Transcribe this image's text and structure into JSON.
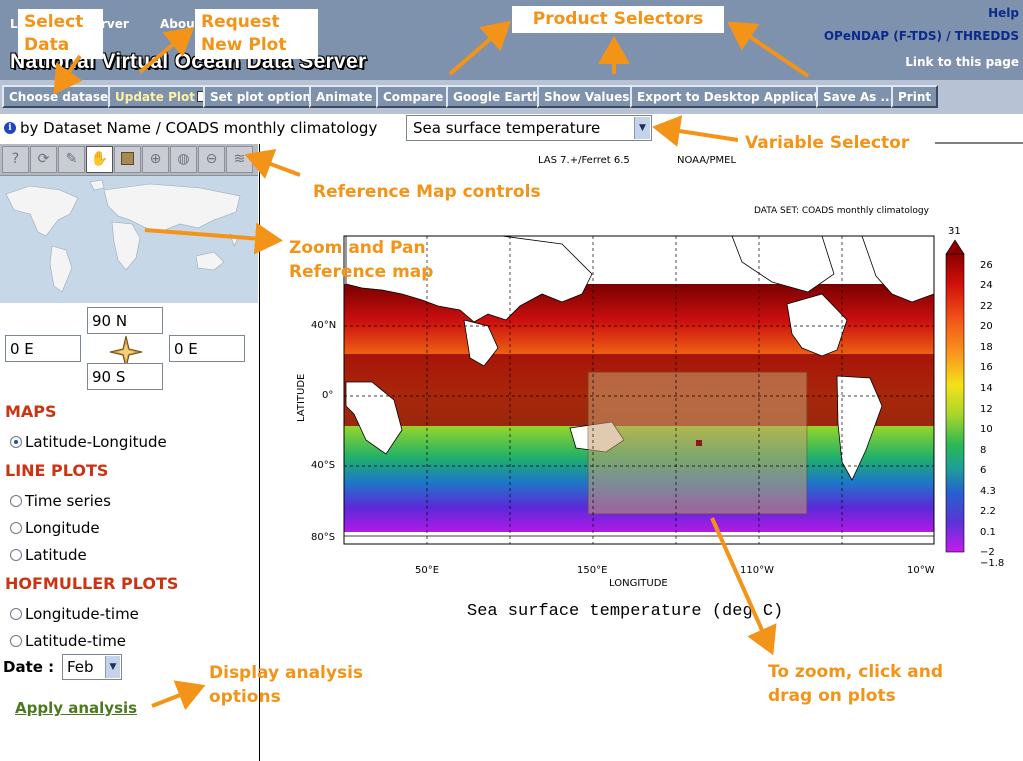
{
  "header": {
    "nav_left_fragment": "L",
    "nav_server_fragment": "rver",
    "nav_about_fragment": "Abou",
    "site_title": "National Virtual Ocean Data Server",
    "help": "Help",
    "opendap": "OPeNDAP (F-TDS) / THREDDS",
    "link_to_page": "Link to this page"
  },
  "toolbar": {
    "choose_dataset": "Choose dataset",
    "update_plot": "Update Plot",
    "set_plot_options": "Set plot options",
    "animate": "Animate",
    "compare": "Compare",
    "google_earth": "Google Earth",
    "show_values": "Show Values",
    "export": "Export to Desktop Application",
    "save_as": "Save As ...",
    "print": "Print"
  },
  "dataset": {
    "info_icon": "info-icon",
    "path": "by Dataset Name / COADS monthly climatology",
    "variable": "Sea surface temperature"
  },
  "map_controls": {
    "icons": [
      "help-icon",
      "reset-icon",
      "select-icon",
      "pan-hand-icon",
      "box-select-icon",
      "zoom-in-icon",
      "world-icon",
      "zoom-out-icon",
      "layers-icon"
    ],
    "active_index": 3
  },
  "region": {
    "north": "90 N",
    "south": "90 S",
    "west": "0 E",
    "east": "0 E"
  },
  "plot_types": {
    "maps_heading": "MAPS",
    "maps": [
      {
        "label": "Latitude-Longitude",
        "selected": true
      }
    ],
    "line_heading": "LINE PLOTS",
    "line": [
      {
        "label": "Time series"
      },
      {
        "label": "Longitude"
      },
      {
        "label": "Latitude"
      }
    ],
    "hofmuller_heading": "HOFMULLER PLOTS",
    "hofmuller": [
      {
        "label": "Longitude-time"
      },
      {
        "label": "Latitude-time"
      }
    ]
  },
  "date": {
    "label": "Date :",
    "value": "Feb"
  },
  "apply_analysis": "Apply analysis",
  "plot": {
    "header": "LAS 7.+/Ferret 6.5",
    "header_right": "NOAA/PMEL",
    "dataset_label": "DATA SET: COADS monthly climatology",
    "title": "Sea surface temperature (deg C)",
    "ylabel": "LATITUDE",
    "xlabel": "LONGITUDE",
    "lat_ticks": [
      "40°N",
      "0°",
      "40°S",
      "80°S"
    ],
    "lon_ticks": [
      "50°E",
      "150°E",
      "110°W",
      "10°W"
    ],
    "colorbar_labels": [
      "31",
      "26",
      "24",
      "22",
      "20",
      "18",
      "16",
      "14",
      "12",
      "10",
      "8",
      "6",
      "4.3",
      "2.2",
      "0.1",
      "−2",
      "−1.8"
    ]
  },
  "annotations": {
    "select_data": "Select Data",
    "request_new_plot": "Request New Plot",
    "product_selectors": "Product Selectors",
    "variable_selector": "Variable Selector",
    "reference_map_controls": "Reference Map controls",
    "zoom_pan": "Zoom and Pan Reference map",
    "display_analysis": "Display analysis options",
    "zoom_click_drag": "To zoom, click and drag on plots"
  },
  "colors": {
    "header_bg": "#7f92ad",
    "toolbar_bg": "#b7c3d4",
    "annotation": "#f39418",
    "section_heading": "#cc3311",
    "link_green": "#4c7a1e"
  }
}
